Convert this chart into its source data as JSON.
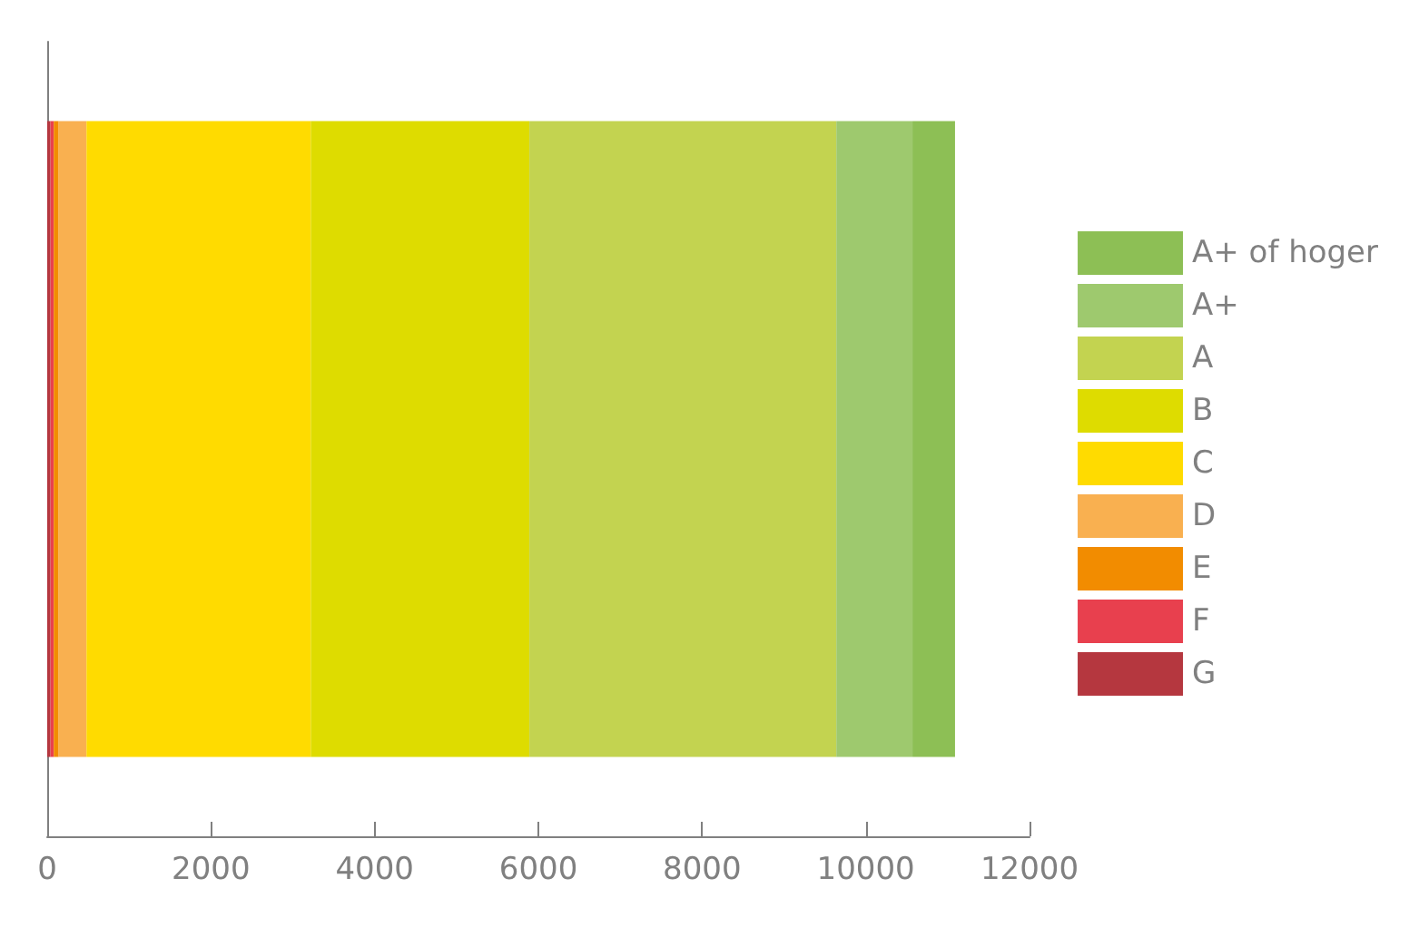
{
  "chart_data": {
    "type": "bar",
    "orientation": "horizontal",
    "stacked": true,
    "categories": [
      null
    ],
    "series": [
      {
        "name": "G",
        "color": "#b5373f",
        "values": [
          40
        ]
      },
      {
        "name": "F",
        "color": "#e8404e",
        "values": [
          40
        ]
      },
      {
        "name": "E",
        "color": "#f28c00",
        "values": [
          60
        ]
      },
      {
        "name": "D",
        "color": "#f9b050",
        "values": [
          340
        ]
      },
      {
        "name": "C",
        "color": "#ffdb00",
        "values": [
          2740
        ]
      },
      {
        "name": "B",
        "color": "#dedc00",
        "values": [
          2670
        ]
      },
      {
        "name": "A",
        "color": "#c3d350",
        "values": [
          3750
        ]
      },
      {
        "name": "A+",
        "color": "#9ec96e",
        "values": [
          930
        ]
      },
      {
        "name": "A+ of hoger",
        "color": "#8dbf55",
        "values": [
          520
        ]
      }
    ],
    "xlim": [
      0,
      12000
    ],
    "xticks": [
      0,
      2000,
      4000,
      6000,
      8000,
      10000,
      12000
    ],
    "grid": false,
    "legend": "right",
    "tick_labels": "x"
  }
}
